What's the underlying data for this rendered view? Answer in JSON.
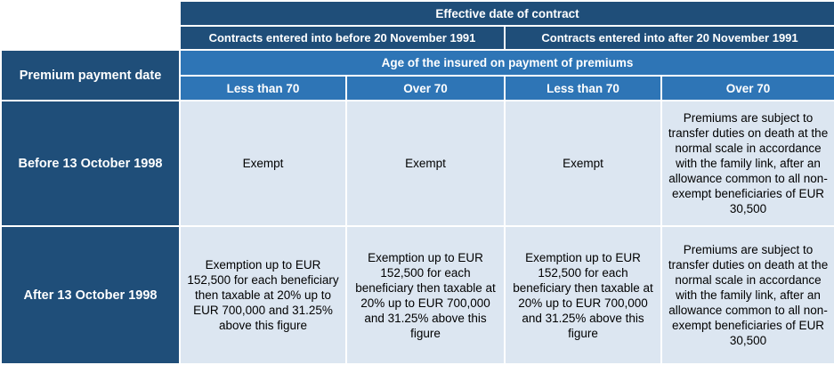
{
  "header": {
    "effective_date": "Effective date of contract",
    "before_contracts": "Contracts entered into before 20 November 1991",
    "after_contracts": "Contracts entered into after 20 November 1991",
    "premium_payment_date": "Premium payment date",
    "age_of_insured": "Age of the insured on payment of premiums",
    "age_columns": [
      "Less than 70",
      "Over 70",
      "Less than 70",
      "Over 70"
    ]
  },
  "rows": [
    {
      "label": "Before 13 October 1998",
      "cells": [
        "Exempt",
        "Exempt",
        "Exempt",
        "Premiums are subject to transfer duties on death at the normal scale in accordance with the family link, after an allowance common to all non-exempt beneficiaries of EUR 30,500"
      ]
    },
    {
      "label": "After 13 October 1998",
      "cells": [
        "Exemption up to EUR 152,500 for each beneficiary then taxable at 20% up to EUR 700,000 and 31.25% above this figure",
        "Exemption up to EUR 152,500 for each beneficiary then taxable at 20% up to EUR 700,000 and 31.25% above this figure",
        "Exemption up to EUR 152,500 for each beneficiary then taxable at 20% up to EUR 700,000 and 31.25% above this figure",
        "Premiums are subject to transfer duties on death at the normal scale in accordance with the family link, after an allowance common to all non-exempt beneficiaries of EUR 30,500"
      ]
    }
  ]
}
